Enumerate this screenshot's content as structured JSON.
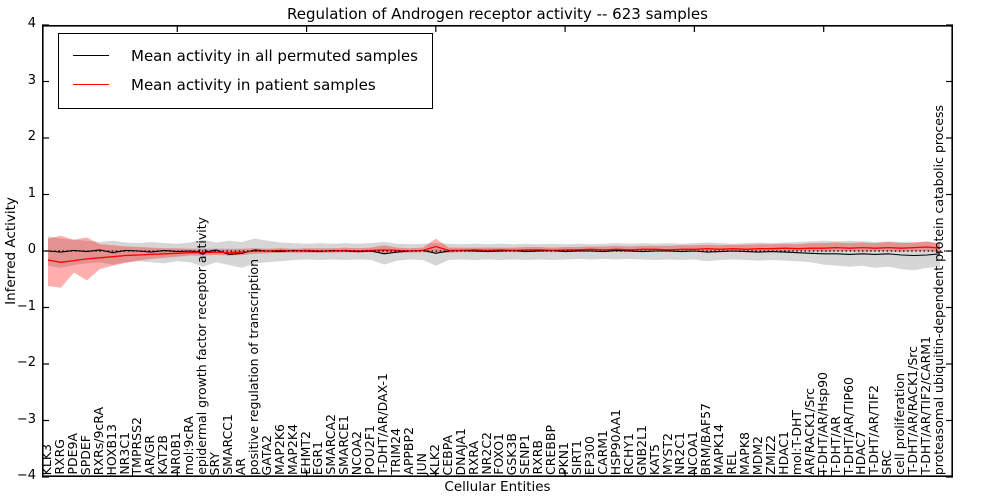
{
  "figure": {
    "title": "Regulation of Androgen receptor activity -- 623 samples",
    "xlabel": "Cellular Entities",
    "ylabel": "Inferred Activity"
  },
  "legend": {
    "entries": [
      {
        "label": "Mean activity in all permuted samples",
        "color": "#000000"
      },
      {
        "label": "Mean activity in patient samples",
        "color": "#ff0000"
      }
    ]
  },
  "chart_data": {
    "type": "line",
    "title": "Regulation of Androgen receptor activity -- 623 samples",
    "xlabel": "Cellular Entities",
    "ylabel": "Inferred Activity",
    "ylim": [
      -4,
      4
    ],
    "yticks": [
      4,
      3,
      2,
      1,
      0,
      -1,
      -2,
      -3,
      -4
    ],
    "grid": false,
    "legend_position": "upper left",
    "zero_line_dotted": true,
    "categories": [
      "KLK3",
      "RXRG",
      "PDE9A",
      "SPDEF",
      "RXRs/9cRA",
      "HOXB13",
      "NR3C1",
      "TMPRSS2",
      "AR/GR",
      "KAT2B",
      "NR0B1",
      "mol:9cRA",
      "epidermal growth factor receptor activity",
      "SRY",
      "SMARCC1",
      "AR",
      "positive regulation of transcription",
      "GATA2",
      "MAP2K6",
      "MAP2K4",
      "EHMT2",
      "EGR1",
      "SMARCA2",
      "SMARCE1",
      "NCOA2",
      "POU2F1",
      "T-DHT/AR/DAX-1",
      "TRIM24",
      "APPBP2",
      "JUN",
      "KLK2",
      "CEBPA",
      "DNAJA1",
      "RXRA",
      "NR2C2",
      "FOXO1",
      "GSK3B",
      "SENP1",
      "RXRB",
      "CREBBP",
      "PKN1",
      "SIRT1",
      "EP300",
      "CARM1",
      "HSP90AA1",
      "RCHY1",
      "GNB2L1",
      "KAT5",
      "MYST2",
      "NR2C1",
      "NCOA1",
      "BRM/BAF57",
      "MAPK14",
      "REL",
      "MAPK8",
      "MDM2",
      "ZMIZ2",
      "HDAC1",
      "mol:T-DHT",
      "AR/RACK1/Src",
      "T-DHT/AR/Hsp90",
      "T-DHT/AR",
      "T-DHT/AR/TIP60",
      "HDAC7",
      "T-DHT/AR/TIF2",
      "SRC",
      "cell proliferation",
      "T-DHT/AR/RACK1/Src",
      "T-DHT/AR/TIF2/CARM1",
      "proteasomal ubiquitin-dependent protein catabolic process"
    ],
    "series": [
      {
        "name": "Mean activity in all permuted samples",
        "color": "#000000",
        "values": [
          0.0,
          -0.02,
          0.01,
          -0.01,
          0.02,
          -0.03,
          0.01,
          0.0,
          -0.02,
          0.01,
          -0.01,
          0.0,
          -0.03,
          0.02,
          -0.06,
          -0.04,
          0.02,
          0.0,
          -0.01,
          0.01,
          0.0,
          -0.01,
          0.01,
          0.0,
          -0.01,
          0.0,
          -0.05,
          -0.02,
          0.0,
          0.01,
          -0.04,
          0.0,
          0.01,
          0.0,
          -0.01,
          0.0,
          0.01,
          -0.01,
          0.0,
          0.01,
          -0.01,
          0.0,
          0.0,
          -0.01,
          0.01,
          0.0,
          -0.01,
          0.0,
          0.0,
          -0.01,
          0.0,
          -0.02,
          -0.01,
          0.0,
          -0.01,
          -0.02,
          -0.01,
          -0.02,
          -0.03,
          -0.04,
          -0.05,
          -0.05,
          -0.06,
          -0.05,
          -0.06,
          -0.05,
          -0.07,
          -0.08,
          -0.07,
          -0.05
        ]
      },
      {
        "name": "Mean activity in patient samples",
        "color": "#ff0000",
        "values": [
          -0.16,
          -0.2,
          -0.17,
          -0.14,
          -0.12,
          -0.1,
          -0.08,
          -0.07,
          -0.06,
          -0.05,
          -0.04,
          -0.03,
          -0.03,
          -0.02,
          -0.03,
          -0.02,
          0.0,
          0.0,
          0.01,
          0.0,
          0.01,
          0.0,
          0.0,
          0.01,
          0.0,
          0.01,
          0.02,
          0.01,
          0.0,
          0.01,
          0.08,
          0.01,
          0.01,
          0.02,
          0.01,
          0.02,
          0.01,
          0.02,
          0.02,
          0.01,
          0.02,
          0.02,
          0.03,
          0.02,
          0.03,
          0.02,
          0.03,
          0.03,
          0.02,
          0.03,
          0.03,
          0.04,
          0.03,
          0.04,
          0.03,
          0.04,
          0.04,
          0.05,
          0.04,
          0.05,
          0.05,
          0.06,
          0.05,
          0.06,
          0.05,
          0.06,
          0.05,
          0.06,
          0.07,
          0.05
        ]
      }
    ],
    "bands": [
      {
        "name": "permuted-samples-band",
        "fill": "rgba(120,120,120,0.30)",
        "upper": [
          0.26,
          0.22,
          0.2,
          0.18,
          0.16,
          0.18,
          0.15,
          0.14,
          0.16,
          0.14,
          0.13,
          0.15,
          0.2,
          0.15,
          0.18,
          0.16,
          0.22,
          0.18,
          0.15,
          0.14,
          0.13,
          0.14,
          0.13,
          0.14,
          0.13,
          0.14,
          0.16,
          0.13,
          0.12,
          0.13,
          0.14,
          0.13,
          0.12,
          0.13,
          0.12,
          0.13,
          0.12,
          0.13,
          0.12,
          0.13,
          0.12,
          0.13,
          0.12,
          0.13,
          0.14,
          0.13,
          0.14,
          0.13,
          0.14,
          0.13,
          0.14,
          0.15,
          0.14,
          0.13,
          0.14,
          0.15,
          0.14,
          0.15,
          0.16,
          0.17,
          0.18,
          0.17,
          0.18,
          0.17,
          0.16,
          0.17,
          0.16,
          0.15,
          0.16,
          0.14
        ],
        "lower": [
          -0.26,
          -0.3,
          -0.25,
          -0.22,
          -0.2,
          -0.24,
          -0.2,
          -0.18,
          -0.2,
          -0.22,
          -0.18,
          -0.2,
          -0.28,
          -0.2,
          -0.25,
          -0.3,
          -0.22,
          -0.2,
          -0.18,
          -0.16,
          -0.15,
          -0.16,
          -0.15,
          -0.16,
          -0.15,
          -0.16,
          -0.24,
          -0.17,
          -0.15,
          -0.16,
          -0.26,
          -0.16,
          -0.15,
          -0.16,
          -0.15,
          -0.16,
          -0.15,
          -0.16,
          -0.15,
          -0.16,
          -0.15,
          -0.14,
          -0.15,
          -0.14,
          -0.15,
          -0.14,
          -0.15,
          -0.16,
          -0.15,
          -0.16,
          -0.15,
          -0.18,
          -0.16,
          -0.15,
          -0.16,
          -0.17,
          -0.16,
          -0.17,
          -0.18,
          -0.2,
          -0.24,
          -0.26,
          -0.28,
          -0.26,
          -0.3,
          -0.28,
          -0.32,
          -0.34,
          -0.3,
          -0.28
        ]
      },
      {
        "name": "patient-samples-band",
        "fill": "rgba(255,0,0,0.32)",
        "upper": [
          0.22,
          0.27,
          0.2,
          0.24,
          0.12,
          0.1,
          0.08,
          0.07,
          0.06,
          0.05,
          0.05,
          0.04,
          0.04,
          0.04,
          0.04,
          0.04,
          0.05,
          0.04,
          0.05,
          0.04,
          0.05,
          0.05,
          0.05,
          0.06,
          0.05,
          0.06,
          0.1,
          0.06,
          0.05,
          0.06,
          0.22,
          0.06,
          0.06,
          0.06,
          0.06,
          0.06,
          0.06,
          0.07,
          0.07,
          0.06,
          0.07,
          0.07,
          0.08,
          0.08,
          0.09,
          0.08,
          0.09,
          0.09,
          0.09,
          0.1,
          0.1,
          0.11,
          0.1,
          0.11,
          0.11,
          0.12,
          0.12,
          0.13,
          0.12,
          0.14,
          0.14,
          0.15,
          0.14,
          0.15,
          0.14,
          0.16,
          0.14,
          0.15,
          0.17,
          0.13
        ],
        "lower": [
          -0.62,
          -0.65,
          -0.38,
          -0.52,
          -0.32,
          -0.26,
          -0.21,
          -0.17,
          -0.14,
          -0.12,
          -0.1,
          -0.08,
          -0.08,
          -0.07,
          -0.08,
          -0.07,
          -0.05,
          -0.04,
          -0.03,
          -0.03,
          -0.03,
          -0.03,
          -0.03,
          -0.02,
          -0.03,
          -0.02,
          -0.05,
          -0.03,
          -0.03,
          -0.02,
          -0.04,
          -0.03,
          -0.02,
          -0.02,
          -0.02,
          -0.02,
          -0.02,
          -0.02,
          -0.01,
          -0.02,
          -0.01,
          -0.01,
          -0.01,
          -0.01,
          -0.01,
          -0.01,
          -0.01,
          0.0,
          -0.01,
          0.0,
          -0.01,
          0.0,
          -0.01,
          0.0,
          -0.01,
          0.0,
          0.0,
          -0.01,
          0.0,
          0.0,
          -0.01,
          0.0,
          0.0,
          -0.01,
          0.0,
          0.0,
          -0.01,
          0.0,
          0.0,
          -0.02
        ]
      }
    ]
  }
}
